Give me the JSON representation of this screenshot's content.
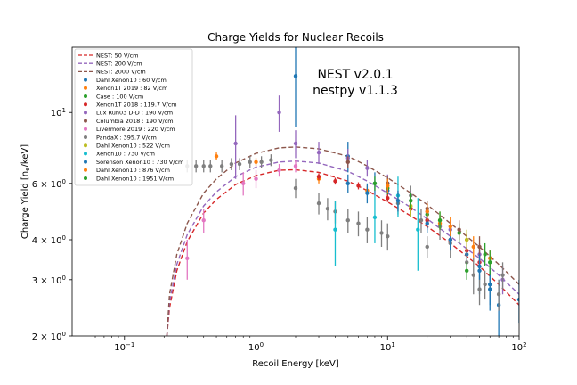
{
  "chart_data": {
    "type": "scatter",
    "title": "Charge Yields for Nuclear Recoils",
    "xlabel": "Recoil Energy [keV]",
    "ylabel": "Charge Yield [n",
    "ylabel_sub": "e",
    "ylabel_suffix": "/keV]",
    "xscale": "log",
    "yscale": "log",
    "xlim": [
      0.04,
      100
    ],
    "ylim": [
      2,
      16
    ],
    "xticks": [
      {
        "value": 0.1,
        "base": "10",
        "exp": "−1"
      },
      {
        "value": 1,
        "base": "10",
        "exp": "0"
      },
      {
        "value": 10,
        "base": "10",
        "exp": "1"
      },
      {
        "value": 100,
        "base": "10",
        "exp": "2"
      }
    ],
    "yticks": [
      {
        "value": 2,
        "mant": "2 × 10",
        "exp": "0"
      },
      {
        "value": 3,
        "mant": "3 × 10",
        "exp": "0"
      },
      {
        "value": 4,
        "mant": "4 × 10",
        "exp": "0"
      },
      {
        "value": 6,
        "mant": "6 × 10",
        "exp": "0"
      },
      {
        "value": 10,
        "mant": "10",
        "exp": "1"
      }
    ],
    "annotation": [
      "NEST v2.0.1",
      "nestpy v1.1.3"
    ],
    "legend_position": "upper-left",
    "curves": [
      {
        "name": "NEST: 50 V/cm",
        "color": "#d62728",
        "points": [
          [
            0.21,
            2.0
          ],
          [
            0.22,
            2.45
          ],
          [
            0.25,
            3.2
          ],
          [
            0.3,
            3.95
          ],
          [
            0.4,
            4.85
          ],
          [
            0.5,
            5.35
          ],
          [
            0.7,
            5.95
          ],
          [
            1.0,
            6.35
          ],
          [
            1.5,
            6.6
          ],
          [
            2.0,
            6.62
          ],
          [
            3.0,
            6.5
          ],
          [
            5.0,
            6.1
          ],
          [
            7.0,
            5.7
          ],
          [
            10.0,
            5.25
          ],
          [
            15.0,
            4.75
          ],
          [
            20.0,
            4.4
          ],
          [
            30.0,
            3.9
          ],
          [
            40.0,
            3.55
          ],
          [
            50.0,
            3.3
          ],
          [
            70.0,
            2.9
          ],
          [
            100.0,
            2.5
          ]
        ]
      },
      {
        "name": "NEST: 200 V/cm",
        "color": "#9467bd",
        "points": [
          [
            0.21,
            2.0
          ],
          [
            0.22,
            2.55
          ],
          [
            0.25,
            3.35
          ],
          [
            0.3,
            4.15
          ],
          [
            0.4,
            5.1
          ],
          [
            0.5,
            5.65
          ],
          [
            0.7,
            6.3
          ],
          [
            1.0,
            6.75
          ],
          [
            1.5,
            7.0
          ],
          [
            2.0,
            7.05
          ],
          [
            3.0,
            6.95
          ],
          [
            5.0,
            6.55
          ],
          [
            7.0,
            6.1
          ],
          [
            10.0,
            5.6
          ],
          [
            15.0,
            5.05
          ],
          [
            20.0,
            4.65
          ],
          [
            30.0,
            4.1
          ],
          [
            40.0,
            3.75
          ],
          [
            50.0,
            3.5
          ],
          [
            70.0,
            3.1
          ],
          [
            100.0,
            2.7
          ]
        ]
      },
      {
        "name": "NEST: 2000 V/cm",
        "color": "#8c564b",
        "points": [
          [
            0.21,
            2.0
          ],
          [
            0.22,
            2.7
          ],
          [
            0.25,
            3.6
          ],
          [
            0.3,
            4.5
          ],
          [
            0.4,
            5.6
          ],
          [
            0.5,
            6.2
          ],
          [
            0.7,
            6.95
          ],
          [
            1.0,
            7.45
          ],
          [
            1.5,
            7.75
          ],
          [
            2.0,
            7.8
          ],
          [
            3.0,
            7.7
          ],
          [
            5.0,
            7.3
          ],
          [
            7.0,
            6.8
          ],
          [
            10.0,
            6.25
          ],
          [
            15.0,
            5.6
          ],
          [
            20.0,
            5.15
          ],
          [
            30.0,
            4.5
          ],
          [
            40.0,
            4.1
          ],
          [
            50.0,
            3.8
          ],
          [
            70.0,
            3.35
          ],
          [
            100.0,
            2.9
          ]
        ]
      }
    ],
    "series": [
      {
        "name": "Dahl Xenon10 : 60 V/cm",
        "color": "#1f77b4",
        "points": [
          [
            2.0,
            13.0,
            4.0
          ],
          [
            5.0,
            7.3,
            0.8
          ],
          [
            8.0,
            6.0,
            0.5
          ],
          [
            10.0,
            5.7,
            0.4
          ],
          [
            15.0,
            5.0,
            0.3
          ],
          [
            20.0,
            4.6,
            0.3
          ],
          [
            30.0,
            4.0,
            0.3
          ],
          [
            40.0,
            3.6,
            0.3
          ],
          [
            50.0,
            3.2,
            0.5
          ],
          [
            60.0,
            2.8,
            0.4
          ],
          [
            70.0,
            2.5,
            0.5
          ],
          [
            100.0,
            2.6,
            0.4
          ]
        ]
      },
      {
        "name": "Xenon1T 2019 : 82 V/cm",
        "color": "#ff7f0e",
        "points": [
          [
            0.5,
            7.3,
            0.2
          ],
          [
            1.0,
            7.0,
            0.2
          ],
          [
            3.0,
            6.2,
            0.2
          ],
          [
            7.0,
            5.7,
            0.2
          ],
          [
            15.0,
            5.0,
            0.2
          ],
          [
            25.0,
            4.5,
            0.2
          ],
          [
            40.0,
            4.0,
            0.2
          ],
          [
            60.0,
            3.5,
            0.2
          ]
        ]
      },
      {
        "name": "Case : 100 V/cm",
        "color": "#2ca02c",
        "points": [
          [
            10.0,
            5.8,
            0.4
          ],
          [
            20.0,
            4.8,
            0.3
          ],
          [
            35.0,
            4.2,
            0.3
          ],
          [
            55.0,
            3.6,
            0.3
          ]
        ]
      },
      {
        "name": "Xenon1T 2018 : 119.7 V/cm",
        "color": "#d62728",
        "points": [
          [
            3.0,
            6.3,
            0.15
          ],
          [
            4.0,
            6.1,
            0.15
          ],
          [
            6.0,
            5.9,
            0.15
          ],
          [
            10.0,
            5.4,
            0.15
          ],
          [
            15.0,
            5.0,
            0.15
          ],
          [
            20.0,
            4.6,
            0.15
          ],
          [
            30.0,
            4.0,
            0.15
          ],
          [
            40.0,
            3.7,
            0.15
          ],
          [
            50.0,
            3.4,
            0.15
          ]
        ]
      },
      {
        "name": "Lux Run03 D-D : 190 V/cm",
        "color": "#9467bd",
        "points": [
          [
            0.7,
            8.0,
            1.8
          ],
          [
            1.5,
            10.0,
            1.3
          ],
          [
            2.0,
            8.0,
            0.8
          ],
          [
            3.0,
            7.5,
            0.6
          ],
          [
            5.0,
            7.2,
            0.5
          ],
          [
            7.0,
            6.7,
            0.4
          ],
          [
            10.0,
            6.0,
            0.4
          ],
          [
            15.0,
            5.3,
            0.4
          ],
          [
            20.0,
            4.9,
            0.3
          ],
          [
            30.0,
            4.3,
            0.3
          ],
          [
            50.0,
            3.6,
            0.3
          ],
          [
            75.0,
            3.0,
            0.3
          ]
        ]
      },
      {
        "name": "Columbia 2018 : 190 V/cm",
        "color": "#8c564b",
        "points": [
          [
            5.0,
            7.0,
            0.3
          ],
          [
            10.0,
            6.0,
            0.3
          ],
          [
            20.0,
            5.0,
            0.3
          ],
          [
            35.0,
            4.3,
            0.3
          ],
          [
            50.0,
            3.8,
            0.3
          ]
        ]
      },
      {
        "name": "Livermore 2019 : 220 V/cm",
        "color": "#e377c2",
        "points": [
          [
            0.3,
            3.5,
            0.5
          ],
          [
            0.4,
            4.6,
            0.4
          ],
          [
            0.8,
            6.0,
            0.5
          ],
          [
            1.0,
            6.2,
            0.4
          ],
          [
            1.5,
            6.6,
            0.3
          ],
          [
            2.0,
            6.8,
            0.3
          ]
        ]
      },
      {
        "name": "PandaX : 395.7 V/cm",
        "color": "#7f7f7f",
        "points": [
          [
            0.3,
            6.8,
            0.3
          ],
          [
            0.35,
            6.8,
            0.3
          ],
          [
            0.4,
            6.8,
            0.3
          ],
          [
            0.45,
            6.8,
            0.3
          ],
          [
            0.55,
            6.8,
            0.3
          ],
          [
            0.65,
            6.9,
            0.3
          ],
          [
            0.75,
            6.9,
            0.3
          ],
          [
            0.9,
            7.0,
            0.3
          ],
          [
            1.1,
            7.0,
            0.3
          ],
          [
            1.3,
            7.1,
            0.3
          ],
          [
            2.0,
            5.8,
            0.4
          ],
          [
            3.0,
            5.2,
            0.4
          ],
          [
            3.5,
            5.0,
            0.4
          ],
          [
            4.0,
            4.9,
            0.4
          ],
          [
            5.0,
            4.6,
            0.4
          ],
          [
            6.0,
            4.5,
            0.4
          ],
          [
            7.0,
            4.3,
            0.4
          ],
          [
            9.0,
            4.2,
            0.4
          ],
          [
            10.0,
            4.1,
            0.4
          ],
          [
            12.0,
            5.2,
            0.4
          ],
          [
            15.0,
            5.5,
            0.4
          ],
          [
            18.0,
            4.6,
            0.4
          ],
          [
            20.0,
            3.8,
            0.3
          ],
          [
            25.0,
            4.4,
            0.4
          ],
          [
            30.0,
            3.9,
            0.4
          ],
          [
            40.0,
            3.4,
            0.4
          ],
          [
            45.0,
            3.1,
            0.4
          ],
          [
            50.0,
            2.8,
            0.3
          ],
          [
            55.0,
            2.9,
            0.3
          ],
          [
            70.0,
            2.7,
            0.3
          ],
          [
            75.0,
            3.1,
            0.3
          ]
        ]
      },
      {
        "name": "Dahl Xenon10 : 522 V/cm",
        "color": "#bcbd22",
        "points": [
          [
            15.0,
            5.1,
            0.4
          ],
          [
            25.0,
            4.6,
            0.3
          ],
          [
            40.0,
            4.0,
            0.3
          ]
        ]
      },
      {
        "name": "Xenon10 : 730 V/cm",
        "color": "#17becf",
        "points": [
          [
            4.0,
            4.3,
            1.0
          ],
          [
            8.0,
            4.7,
            0.8
          ],
          [
            12.0,
            5.5,
            0.8
          ],
          [
            17.0,
            4.3,
            1.1
          ]
        ]
      },
      {
        "name": "Sorenson Xenon10 : 730 V/cm",
        "color": "#1f77b4",
        "points": [
          [
            5.0,
            6.0,
            0.4
          ],
          [
            7.0,
            5.6,
            0.4
          ],
          [
            12.0,
            5.3,
            0.4
          ],
          [
            20.0,
            4.5,
            0.3
          ],
          [
            30.0,
            4.0,
            0.3
          ],
          [
            50.0,
            3.3,
            0.3
          ],
          [
            60.0,
            2.9,
            0.4
          ]
        ]
      },
      {
        "name": "Dahl Xenon10 : 876 V/cm",
        "color": "#ff7f0e",
        "points": [
          [
            10.0,
            5.9,
            0.3
          ],
          [
            20.0,
            4.9,
            0.3
          ],
          [
            30.0,
            4.4,
            0.3
          ],
          [
            45.0,
            3.8,
            0.3
          ]
        ]
      },
      {
        "name": "Dahl Xenon10 : 1951 V/cm",
        "color": "#2ca02c",
        "points": [
          [
            8.0,
            6.0,
            0.3
          ],
          [
            15.0,
            5.3,
            0.3
          ],
          [
            25.0,
            4.6,
            0.3
          ],
          [
            40.0,
            3.2,
            0.2
          ],
          [
            60.0,
            3.4,
            0.3
          ]
        ]
      }
    ]
  }
}
